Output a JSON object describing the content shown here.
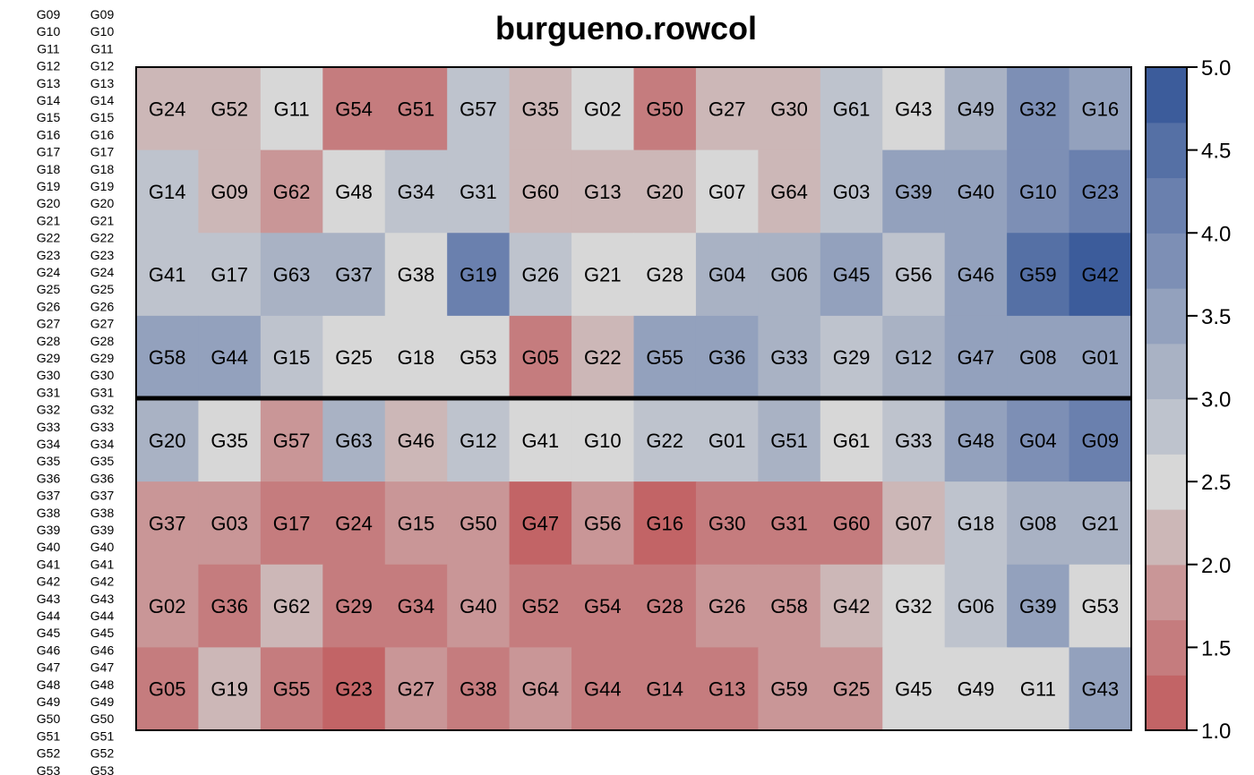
{
  "chart_data": {
    "type": "heatmap",
    "title": "burgueno.rowcol",
    "rows": 8,
    "cols": 16,
    "block_divider_after_row": 4,
    "labels": [
      [
        "G24",
        "G52",
        "G11",
        "G54",
        "G51",
        "G57",
        "G35",
        "G02",
        "G50",
        "G27",
        "G30",
        "G61",
        "G43",
        "G49",
        "G32",
        "G16"
      ],
      [
        "G14",
        "G09",
        "G62",
        "G48",
        "G34",
        "G31",
        "G60",
        "G13",
        "G20",
        "G07",
        "G64",
        "G03",
        "G39",
        "G40",
        "G10",
        "G23"
      ],
      [
        "G41",
        "G17",
        "G63",
        "G37",
        "G38",
        "G19",
        "G26",
        "G21",
        "G28",
        "G04",
        "G06",
        "G45",
        "G56",
        "G46",
        "G59",
        "G42"
      ],
      [
        "G58",
        "G44",
        "G15",
        "G25",
        "G18",
        "G53",
        "G05",
        "G22",
        "G55",
        "G36",
        "G33",
        "G29",
        "G12",
        "G47",
        "G08",
        "G01"
      ],
      [
        "G20",
        "G35",
        "G57",
        "G63",
        "G46",
        "G12",
        "G41",
        "G10",
        "G22",
        "G01",
        "G51",
        "G61",
        "G33",
        "G48",
        "G04",
        "G09"
      ],
      [
        "G37",
        "G03",
        "G17",
        "G24",
        "G15",
        "G50",
        "G47",
        "G56",
        "G16",
        "G30",
        "G31",
        "G60",
        "G07",
        "G18",
        "G08",
        "G21"
      ],
      [
        "G02",
        "G36",
        "G62",
        "G29",
        "G34",
        "G40",
        "G52",
        "G54",
        "G28",
        "G26",
        "G58",
        "G42",
        "G32",
        "G06",
        "G39",
        "G53"
      ],
      [
        "G05",
        "G19",
        "G55",
        "G23",
        "G27",
        "G38",
        "G64",
        "G44",
        "G14",
        "G13",
        "G59",
        "G25",
        "G45",
        "G49",
        "G11",
        "G43"
      ]
    ],
    "values": [
      [
        2.1,
        2.1,
        2.6,
        1.4,
        1.4,
        2.9,
        2.1,
        2.6,
        1.6,
        2.1,
        2.1,
        2.9,
        2.5,
        3.3,
        3.9,
        3.6
      ],
      [
        2.9,
        2.1,
        1.7,
        2.6,
        2.9,
        2.9,
        2.1,
        2.1,
        2.1,
        2.5,
        2.1,
        2.9,
        3.6,
        3.6,
        3.9,
        4.2
      ],
      [
        2.9,
        2.9,
        3.3,
        3.1,
        2.6,
        4.1,
        2.9,
        2.6,
        2.6,
        3.1,
        3.1,
        3.6,
        2.8,
        3.6,
        4.5,
        4.8
      ],
      [
        3.6,
        3.6,
        2.9,
        2.6,
        2.6,
        2.6,
        1.4,
        2.1,
        3.6,
        3.6,
        3.1,
        2.9,
        3.1,
        3.6,
        3.6,
        3.6
      ],
      [
        3.3,
        2.6,
        1.7,
        3.3,
        2.1,
        2.9,
        2.6,
        2.6,
        2.9,
        2.9,
        3.3,
        2.6,
        2.9,
        3.6,
        3.9,
        4.2
      ],
      [
        1.7,
        1.7,
        1.4,
        1.4,
        1.7,
        1.7,
        1.2,
        1.7,
        1.2,
        1.4,
        1.4,
        1.4,
        2.1,
        2.9,
        3.1,
        3.1
      ],
      [
        1.7,
        1.4,
        2.1,
        1.4,
        1.4,
        1.7,
        1.4,
        1.4,
        1.4,
        1.7,
        1.7,
        2.1,
        2.6,
        2.9,
        3.6,
        2.6
      ],
      [
        1.4,
        2.1,
        1.4,
        1.2,
        1.7,
        1.4,
        1.7,
        1.4,
        1.4,
        1.4,
        1.7,
        1.7,
        2.6,
        2.6,
        2.6,
        3.6
      ]
    ],
    "colorbar": {
      "range": [
        1.0,
        5.0
      ],
      "bins": 12,
      "ticks": [
        "1.0",
        "1.5",
        "2.0",
        "2.5",
        "3.0",
        "3.5",
        "4.0",
        "4.5",
        "5.0"
      ],
      "colors": [
        "#c26466",
        "#c57c7e",
        "#c99697",
        "#ccb7b7",
        "#d7d7d7",
        "#bec3cd",
        "#a9b2c4",
        "#93a1bd",
        "#7d8fb5",
        "#6a80ae",
        "#5570a5",
        "#3c5c9b"
      ]
    },
    "margin_labels": {
      "left": [
        "G09",
        "G10",
        "G11",
        "G12",
        "G13",
        "G14",
        "G15",
        "G16",
        "G17",
        "G18",
        "G19",
        "G20",
        "G21",
        "G22",
        "G23",
        "G24",
        "G25",
        "G26",
        "G27",
        "G28",
        "G29",
        "G30",
        "G31",
        "G32",
        "G33",
        "G34",
        "G35",
        "G36",
        "G37",
        "G38",
        "G39",
        "G40",
        "G41",
        "G42",
        "G43",
        "G44",
        "G45",
        "G46",
        "G47",
        "G48",
        "G49",
        "G50",
        "G51",
        "G52",
        "G53"
      ],
      "right": [
        "G09",
        "G10",
        "G11",
        "G12",
        "G13",
        "G14",
        "G15",
        "G16",
        "G17",
        "G18",
        "G19",
        "G20",
        "G21",
        "G22",
        "G23",
        "G24",
        "G25",
        "G26",
        "G27",
        "G28",
        "G29",
        "G30",
        "G31",
        "G32",
        "G33",
        "G34",
        "G35",
        "G36",
        "G37",
        "G38",
        "G39",
        "G40",
        "G41",
        "G42",
        "G43",
        "G44",
        "G45",
        "G46",
        "G47",
        "G48",
        "G49",
        "G50",
        "G51",
        "G52",
        "G53"
      ]
    }
  }
}
